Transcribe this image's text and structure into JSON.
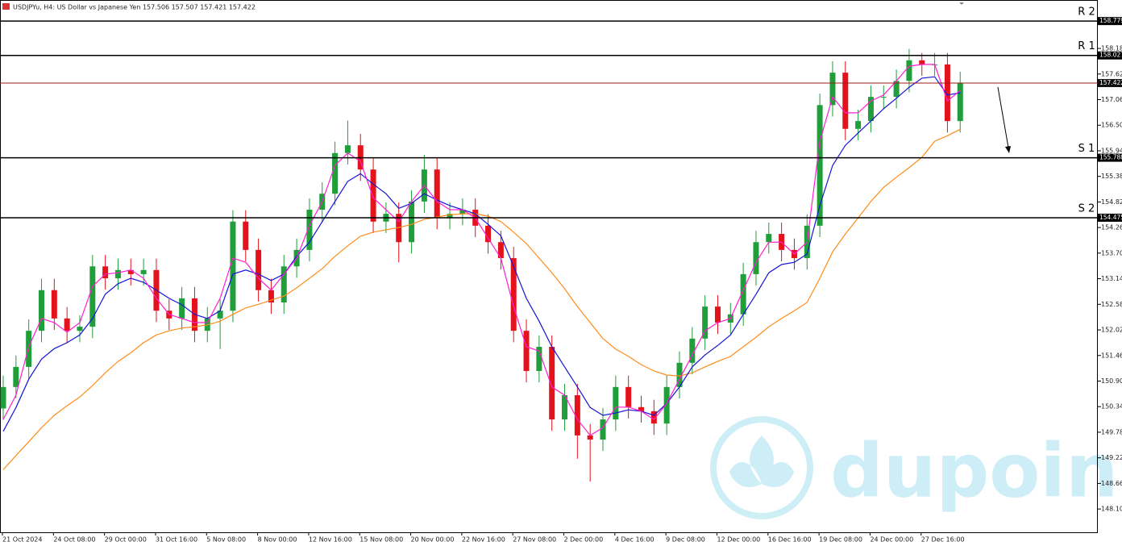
{
  "chart_data": {
    "type": "candlestick",
    "title": "USDJPYu, H4:  US Dollar vs Japanese Yen  157.506 157.507 157.421 157.422",
    "watermark": "dupoin",
    "ylim": [
      147.59,
      159.24
    ],
    "yticks": [
      {
        "value": 158.18,
        "label": "158.180"
      },
      {
        "value": 157.62,
        "label": "157.620"
      },
      {
        "value": 157.06,
        "label": "157.060"
      },
      {
        "value": 156.5,
        "label": "156.500"
      },
      {
        "value": 155.94,
        "label": "155.940"
      },
      {
        "value": 155.38,
        "label": "155.380"
      },
      {
        "value": 154.82,
        "label": "154.820"
      },
      {
        "value": 154.26,
        "label": "154.260"
      },
      {
        "value": 153.7,
        "label": "153.700"
      },
      {
        "value": 153.14,
        "label": "153.140"
      },
      {
        "value": 152.58,
        "label": "152.580"
      },
      {
        "value": 152.02,
        "label": "152.020"
      },
      {
        "value": 151.46,
        "label": "151.460"
      },
      {
        "value": 150.9,
        "label": "150.900"
      },
      {
        "value": 150.34,
        "label": "150.340"
      },
      {
        "value": 149.78,
        "label": "149.780"
      },
      {
        "value": 149.22,
        "label": "149.220"
      },
      {
        "value": 148.66,
        "label": "148.660"
      },
      {
        "value": 148.1,
        "label": "148.100"
      }
    ],
    "categories": [
      "21 Oct 2024",
      null,
      null,
      null,
      "24 Oct 08:00",
      null,
      null,
      null,
      "29 Oct 00:00",
      null,
      null,
      null,
      "31 Oct 16:00",
      null,
      null,
      null,
      "5 Nov 08:00",
      null,
      null,
      null,
      "8 Nov 00:00",
      null,
      null,
      null,
      "12 Nov 16:00",
      null,
      null,
      null,
      "15 Nov 08:00",
      null,
      null,
      null,
      "20 Nov 00:00",
      null,
      null,
      null,
      "22 Nov 16:00",
      null,
      null,
      null,
      "27 Nov 08:00",
      null,
      null,
      null,
      "2 Dec 00:00",
      null,
      null,
      null,
      "4 Dec 16:00",
      null,
      null,
      null,
      "9 Dec 08:00",
      null,
      null,
      null,
      "12 Dec 00:00",
      null,
      null,
      null,
      "16 Dec 16:00",
      null,
      null,
      null,
      "19 Dec 08:00",
      null,
      null,
      null,
      "24 Dec 00:00",
      null,
      null,
      null,
      "27 Dec 16:00",
      null,
      null,
      null
    ],
    "up_color": "#1f9e3a",
    "down_color": "#e3121b",
    "candles": {
      "open": [
        150.3,
        150.77,
        151.21,
        152.0,
        152.89,
        152.27,
        152.0,
        152.09,
        153.41,
        153.15,
        153.33,
        153.24,
        153.33,
        152.44,
        152.27,
        152.71,
        152.0,
        152.27,
        152.44,
        154.39,
        153.77,
        152.89,
        152.62,
        153.41,
        153.77,
        154.65,
        155.0,
        155.89,
        156.06,
        155.53,
        154.39,
        154.56,
        153.94,
        154.83,
        155.53,
        154.47,
        154.56,
        154.65,
        154.3,
        153.94,
        153.59,
        152.0,
        151.12,
        151.65,
        150.06,
        150.59,
        149.71,
        149.62,
        150.06,
        150.77,
        150.33,
        150.24,
        149.97,
        150.77,
        151.3,
        151.83,
        152.53,
        152.18,
        152.36,
        153.24,
        153.94,
        154.12,
        153.77,
        153.59,
        154.3,
        156.94,
        157.65,
        156.42,
        156.59,
        157.12,
        157.12,
        157.47,
        157.92,
        157.83,
        157.83,
        156.59
      ],
      "high": [
        151.02,
        151.46,
        152.25,
        153.14,
        153.14,
        152.52,
        152.34,
        153.66,
        153.66,
        153.58,
        153.58,
        153.58,
        153.58,
        152.69,
        152.96,
        152.96,
        152.52,
        152.69,
        154.64,
        154.64,
        154.02,
        153.14,
        153.66,
        154.02,
        154.9,
        155.25,
        156.14,
        156.6,
        156.31,
        155.78,
        154.81,
        154.81,
        155.08,
        155.85,
        155.78,
        154.81,
        154.9,
        154.9,
        154.55,
        154.19,
        153.84,
        152.25,
        151.9,
        151.9,
        150.84,
        150.84,
        149.96,
        150.31,
        151.02,
        151.02,
        150.58,
        150.49,
        151.02,
        151.55,
        152.08,
        152.78,
        152.78,
        152.61,
        153.49,
        154.19,
        154.37,
        154.37,
        154.02,
        154.55,
        157.19,
        157.9,
        157.9,
        156.84,
        157.37,
        157.37,
        157.72,
        158.17,
        158.08,
        158.08,
        158.08,
        157.67
      ],
      "low": [
        150.05,
        150.52,
        150.96,
        151.75,
        152.02,
        151.75,
        151.75,
        151.84,
        152.9,
        152.9,
        152.99,
        152.99,
        152.19,
        152.02,
        152.02,
        151.75,
        151.75,
        151.6,
        152.19,
        153.52,
        152.64,
        152.37,
        152.37,
        153.16,
        153.52,
        154.4,
        154.75,
        155.64,
        155.28,
        154.14,
        154.14,
        153.5,
        153.69,
        154.58,
        154.22,
        154.22,
        154.31,
        154.05,
        153.69,
        153.34,
        151.75,
        150.87,
        150.87,
        149.81,
        149.81,
        149.2,
        148.7,
        149.37,
        149.81,
        150.08,
        149.99,
        149.72,
        149.72,
        150.52,
        151.05,
        151.58,
        151.93,
        151.93,
        152.11,
        152.99,
        153.69,
        153.52,
        153.34,
        153.34,
        154.05,
        156.69,
        156.17,
        156.17,
        156.34,
        156.87,
        156.87,
        157.22,
        157.58,
        157.58,
        156.34,
        156.34
      ],
      "close": [
        150.77,
        151.21,
        152.0,
        152.89,
        152.27,
        152.0,
        152.09,
        153.41,
        153.15,
        153.33,
        153.24,
        153.33,
        152.44,
        152.27,
        152.71,
        152.0,
        152.27,
        152.44,
        154.39,
        153.77,
        152.89,
        152.62,
        153.41,
        153.77,
        154.65,
        155.0,
        155.89,
        156.06,
        155.53,
        154.39,
        154.56,
        153.94,
        154.83,
        155.53,
        154.47,
        154.56,
        154.65,
        154.3,
        153.94,
        153.59,
        152.0,
        151.12,
        151.65,
        150.06,
        150.59,
        149.71,
        149.62,
        150.06,
        150.77,
        150.33,
        150.24,
        149.97,
        150.77,
        151.3,
        151.83,
        152.53,
        152.18,
        152.36,
        153.24,
        153.94,
        154.12,
        153.77,
        153.59,
        154.3,
        156.94,
        157.65,
        156.42,
        156.59,
        157.12,
        157.12,
        157.47,
        157.92,
        157.83,
        157.83,
        156.59,
        157.422
      ]
    },
    "series": [
      {
        "color": "#ff8c1a",
        "values": [
          148.96,
          149.27,
          149.57,
          149.88,
          150.15,
          150.36,
          150.55,
          150.8,
          151.08,
          151.33,
          151.52,
          151.74,
          151.91,
          152.0,
          152.06,
          152.09,
          152.13,
          152.21,
          152.36,
          152.5,
          152.58,
          152.67,
          152.76,
          152.94,
          153.15,
          153.36,
          153.63,
          153.86,
          154.07,
          154.16,
          154.21,
          154.26,
          154.33,
          154.44,
          154.49,
          154.54,
          154.56,
          154.56,
          154.51,
          154.39,
          154.16,
          153.91,
          153.59,
          153.27,
          152.92,
          152.53,
          152.18,
          151.83,
          151.6,
          151.44,
          151.26,
          151.12,
          151.03,
          151.01,
          151.08,
          151.21,
          151.33,
          151.44,
          151.65,
          151.86,
          152.09,
          152.27,
          152.44,
          152.62,
          153.15,
          153.73,
          154.12,
          154.47,
          154.83,
          155.14,
          155.36,
          155.57,
          155.8,
          156.15,
          156.27,
          156.41
        ]
      },
      {
        "color": "#1414d6",
        "values": [
          149.8,
          150.32,
          150.94,
          151.38,
          151.61,
          151.74,
          151.91,
          152.27,
          152.8,
          153.03,
          153.15,
          153.06,
          152.89,
          152.71,
          152.57,
          152.36,
          152.27,
          152.44,
          153.24,
          153.33,
          153.24,
          153.1,
          153.24,
          153.63,
          153.94,
          154.39,
          154.83,
          155.27,
          155.44,
          155.21,
          155.0,
          154.68,
          154.79,
          155.0,
          154.86,
          154.74,
          154.65,
          154.56,
          154.33,
          154.08,
          153.41,
          152.71,
          152.21,
          151.65,
          151.21,
          150.77,
          150.32,
          150.15,
          150.2,
          150.27,
          150.24,
          150.15,
          150.41,
          150.77,
          151.21,
          151.47,
          151.68,
          151.91,
          152.36,
          152.8,
          153.27,
          153.45,
          153.5,
          153.68,
          154.74,
          155.62,
          156.06,
          156.33,
          156.59,
          156.86,
          157.09,
          157.33,
          157.53,
          157.56,
          157.16,
          157.21
        ]
      },
      {
        "color": "#ff1ed2",
        "values": [
          150.06,
          150.59,
          151.65,
          152.27,
          152.18,
          151.97,
          152.18,
          152.97,
          153.24,
          153.27,
          153.33,
          153.15,
          152.71,
          152.36,
          152.27,
          152.18,
          152.18,
          152.71,
          153.59,
          153.5,
          153.15,
          152.89,
          153.24,
          153.59,
          154.3,
          154.83,
          155.62,
          155.89,
          155.71,
          154.91,
          154.65,
          154.39,
          154.83,
          155.18,
          154.83,
          154.65,
          154.65,
          154.47,
          154.03,
          153.59,
          152.53,
          151.65,
          151.56,
          150.77,
          150.59,
          150.06,
          149.71,
          149.88,
          150.33,
          150.33,
          150.24,
          150.06,
          150.41,
          150.94,
          151.47,
          152.0,
          152.18,
          152.27,
          152.89,
          153.5,
          153.94,
          153.94,
          153.68,
          153.94,
          156.15,
          157.12,
          156.77,
          156.77,
          157.03,
          157.16,
          157.47,
          157.79,
          157.83,
          157.83,
          157.03,
          157.26
        ]
      }
    ],
    "levels": [
      {
        "label": "R 2",
        "value": 158.779,
        "color": "#000000"
      },
      {
        "label": "R 1",
        "value": 158.027,
        "color": "#000000"
      },
      {
        "label": "S 1",
        "value": 155.788,
        "color": "#000000"
      },
      {
        "label": "S 2",
        "value": 154.475,
        "color": "#000000"
      }
    ],
    "current_price": {
      "value": 157.422,
      "color": "#a31818"
    }
  }
}
